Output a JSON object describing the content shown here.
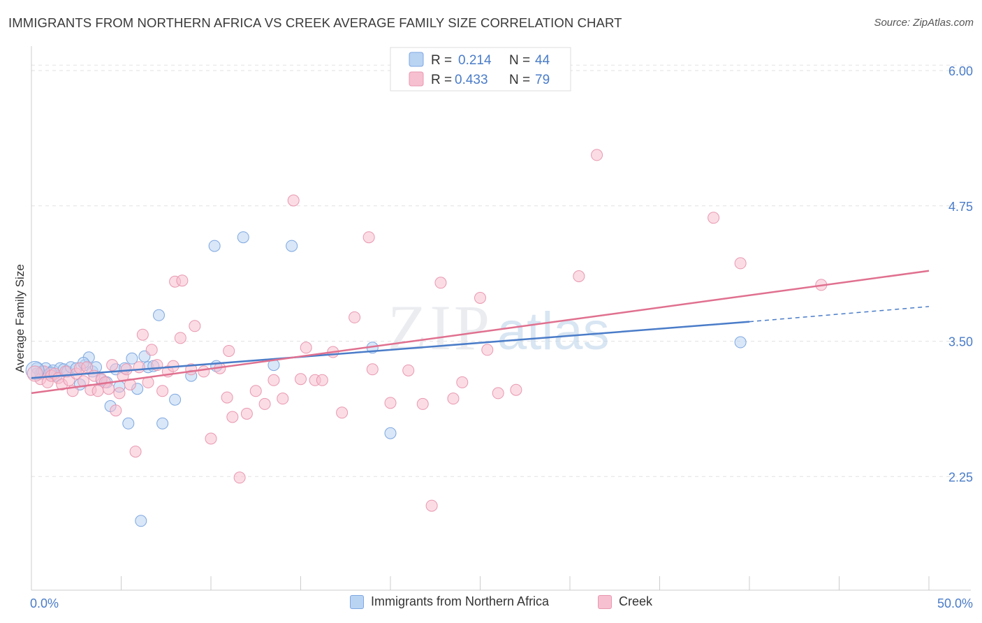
{
  "title": "IMMIGRANTS FROM NORTHERN AFRICA VS CREEK AVERAGE FAMILY SIZE CORRELATION CHART",
  "source": "Source: ZipAtlas.com",
  "watermark": {
    "zip": "ZIP",
    "atlas": "atlas"
  },
  "colors": {
    "blue": "#4a7cc8",
    "blue_fill": "#b9d3f3",
    "blue_stroke": "#7ea7e0",
    "pink": "#e0708f",
    "pink_fill": "#f7c0d0",
    "pink_stroke": "#e898b0",
    "tick_text": "#4a7cc8"
  },
  "legend": {
    "rows": [
      {
        "r_label": "R =",
        "r_value": "0.214",
        "n_label": "N =",
        "n_value": "44",
        "series": "blue"
      },
      {
        "r_label": "R =",
        "r_value": "0.433",
        "n_label": "N =",
        "n_value": "79",
        "series": "pink"
      }
    ]
  },
  "bottom_legend": [
    {
      "label": "Immigrants from Northern Africa",
      "series": "blue"
    },
    {
      "label": "Creek",
      "series": "pink"
    }
  ],
  "chart_data": {
    "type": "scatter",
    "title": "IMMIGRANTS FROM NORTHERN AFRICA VS CREEK AVERAGE FAMILY SIZE CORRELATION CHART",
    "xlabel": "",
    "ylabel": "Average Family Size",
    "x_tick_labels": [
      "0.0%",
      "50.0%"
    ],
    "y_ticks": [
      2.25,
      3.5,
      4.75,
      6.0
    ],
    "y_tick_labels": [
      "2.25",
      "3.50",
      "4.75",
      "6.00"
    ],
    "xlim": [
      0,
      50
    ],
    "ylim": [
      1.2,
      6.2
    ],
    "grid": "horizontal-dashed",
    "legend_position": "top-center",
    "series": [
      {
        "name": "Immigrants from Northern Africa",
        "color": "blue",
        "r": 0.214,
        "n": 44,
        "trend": {
          "x0": 0,
          "y0": 3.16,
          "x1": 40,
          "y1": 3.68,
          "dashed_to_x": 50,
          "dashed_to_y": 3.82
        },
        "points": [
          [
            0.3,
            3.25
          ],
          [
            0.5,
            3.2
          ],
          [
            0.6,
            3.22
          ],
          [
            0.8,
            3.25
          ],
          [
            1.0,
            3.2
          ],
          [
            1.2,
            3.23
          ],
          [
            1.4,
            3.18
          ],
          [
            1.6,
            3.25
          ],
          [
            1.8,
            3.24
          ],
          [
            2.0,
            3.22
          ],
          [
            2.2,
            3.26
          ],
          [
            2.5,
            3.25
          ],
          [
            2.7,
            3.1
          ],
          [
            3.0,
            3.28
          ],
          [
            3.2,
            3.35
          ],
          [
            3.4,
            3.22
          ],
          [
            3.6,
            3.26
          ],
          [
            3.9,
            3.14
          ],
          [
            4.2,
            3.12
          ],
          [
            4.4,
            2.9
          ],
          [
            4.7,
            3.24
          ],
          [
            4.9,
            3.08
          ],
          [
            5.2,
            3.25
          ],
          [
            5.4,
            2.74
          ],
          [
            5.6,
            3.34
          ],
          [
            5.9,
            3.06
          ],
          [
            6.1,
            1.84
          ],
          [
            6.3,
            3.36
          ],
          [
            6.5,
            3.26
          ],
          [
            6.8,
            3.27
          ],
          [
            7.1,
            3.74
          ],
          [
            7.3,
            2.74
          ],
          [
            8.0,
            2.96
          ],
          [
            8.9,
            3.18
          ],
          [
            10.2,
            4.38
          ],
          [
            10.3,
            3.27
          ],
          [
            11.8,
            4.46
          ],
          [
            13.5,
            3.28
          ],
          [
            14.5,
            4.38
          ],
          [
            19.0,
            3.44
          ],
          [
            20.0,
            2.65
          ],
          [
            39.5,
            3.49
          ],
          [
            1.1,
            3.21
          ],
          [
            2.9,
            3.3
          ]
        ]
      },
      {
        "name": "Creek",
        "color": "pink",
        "r": 0.433,
        "n": 79,
        "trend": {
          "x0": 0,
          "y0": 3.02,
          "x1": 50,
          "y1": 4.15
        },
        "points": [
          [
            0.3,
            3.2
          ],
          [
            0.5,
            3.15
          ],
          [
            0.7,
            3.22
          ],
          [
            0.9,
            3.12
          ],
          [
            1.1,
            3.18
          ],
          [
            1.3,
            3.2
          ],
          [
            1.5,
            3.16
          ],
          [
            1.7,
            3.1
          ],
          [
            1.9,
            3.22
          ],
          [
            2.1,
            3.14
          ],
          [
            2.3,
            3.04
          ],
          [
            2.5,
            3.2
          ],
          [
            2.7,
            3.25
          ],
          [
            2.9,
            3.13
          ],
          [
            3.1,
            3.26
          ],
          [
            3.3,
            3.05
          ],
          [
            3.5,
            3.18
          ],
          [
            3.7,
            3.04
          ],
          [
            3.9,
            3.15
          ],
          [
            4.1,
            3.12
          ],
          [
            4.3,
            3.06
          ],
          [
            4.5,
            3.28
          ],
          [
            4.7,
            2.86
          ],
          [
            4.9,
            3.02
          ],
          [
            5.1,
            3.18
          ],
          [
            5.3,
            3.24
          ],
          [
            5.5,
            3.1
          ],
          [
            5.8,
            2.48
          ],
          [
            6.0,
            3.26
          ],
          [
            6.2,
            3.56
          ],
          [
            6.5,
            3.12
          ],
          [
            6.7,
            3.42
          ],
          [
            7.0,
            3.28
          ],
          [
            7.3,
            3.04
          ],
          [
            7.6,
            3.22
          ],
          [
            7.9,
            3.27
          ],
          [
            8.0,
            4.05
          ],
          [
            8.3,
            3.53
          ],
          [
            8.4,
            4.06
          ],
          [
            8.9,
            3.24
          ],
          [
            9.1,
            3.64
          ],
          [
            9.6,
            3.22
          ],
          [
            10.0,
            2.6
          ],
          [
            10.5,
            3.25
          ],
          [
            10.9,
            2.98
          ],
          [
            11.0,
            3.41
          ],
          [
            11.2,
            2.8
          ],
          [
            11.6,
            2.24
          ],
          [
            12.0,
            2.83
          ],
          [
            12.5,
            3.04
          ],
          [
            13.0,
            2.92
          ],
          [
            13.5,
            3.14
          ],
          [
            14.0,
            2.97
          ],
          [
            14.6,
            4.8
          ],
          [
            15.0,
            3.15
          ],
          [
            15.3,
            3.44
          ],
          [
            15.8,
            3.14
          ],
          [
            16.2,
            3.14
          ],
          [
            16.8,
            3.4
          ],
          [
            17.3,
            2.84
          ],
          [
            18.0,
            3.72
          ],
          [
            18.8,
            4.46
          ],
          [
            19.0,
            3.24
          ],
          [
            20.0,
            2.93
          ],
          [
            21.0,
            3.23
          ],
          [
            21.8,
            2.92
          ],
          [
            22.3,
            1.98
          ],
          [
            22.8,
            4.04
          ],
          [
            23.5,
            2.97
          ],
          [
            24.0,
            3.12
          ],
          [
            25.0,
            3.9
          ],
          [
            25.4,
            3.42
          ],
          [
            26.0,
            3.02
          ],
          [
            27.0,
            3.05
          ],
          [
            30.5,
            4.1
          ],
          [
            31.5,
            5.22
          ],
          [
            38.0,
            4.64
          ],
          [
            39.5,
            4.22
          ],
          [
            44.0,
            4.02
          ]
        ]
      }
    ]
  }
}
